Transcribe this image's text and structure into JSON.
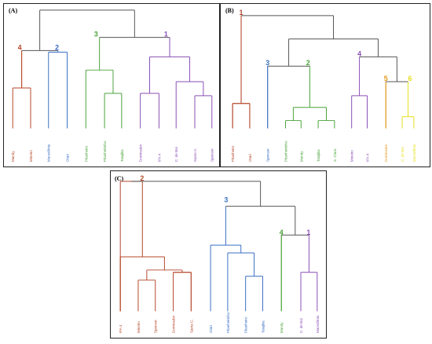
{
  "colors": {
    "link": "#555555",
    "red": "#b5472a",
    "blue": "#3a6fc4",
    "green": "#4aa33a",
    "purple": "#8a4fb5",
    "orange": "#e09a1a",
    "yellow": "#e8e020"
  },
  "panels": [
    {
      "label": "(A)",
      "leaves": [
        {
          "name": "Mundy",
          "color": "red"
        },
        {
          "name": "Mineiro",
          "color": "red"
        },
        {
          "name": "Macedônia",
          "color": "blue"
        },
        {
          "name": "Otari",
          "color": "blue"
        },
        {
          "name": "Pitanheiro",
          "color": "green"
        },
        {
          "name": "Pitanheirinho",
          "color": "green"
        },
        {
          "name": "Tatajiba",
          "color": "green"
        },
        {
          "name": "Dominador",
          "color": "purple"
        },
        {
          "name": "IPA 4",
          "color": "purple"
        },
        {
          "name": "C. de Boi",
          "color": "purple"
        },
        {
          "name": "Santa C.",
          "color": "purple"
        },
        {
          "name": "Spenser",
          "color": "purple"
        }
      ],
      "clusters": [
        {
          "id": "4",
          "color": "red"
        },
        {
          "id": "2",
          "color": "blue"
        },
        {
          "id": "3",
          "color": "green"
        },
        {
          "id": "1",
          "color": "purple"
        }
      ]
    },
    {
      "label": "(B)",
      "leaves": [
        {
          "name": "Pitanheiro",
          "color": "red"
        },
        {
          "name": "Otari",
          "color": "red"
        },
        {
          "name": "Spenser",
          "color": "blue"
        },
        {
          "name": "Pitanheirinho",
          "color": "green"
        },
        {
          "name": "Mundy",
          "color": "green"
        },
        {
          "name": "Tatajiba",
          "color": "green"
        },
        {
          "name": "S. Clara",
          "color": "green"
        },
        {
          "name": "Mineiro",
          "color": "purple"
        },
        {
          "name": "IPA 4",
          "color": "purple"
        },
        {
          "name": "Dominador",
          "color": "orange"
        },
        {
          "name": "C. de Boi",
          "color": "yellow"
        },
        {
          "name": "Macedônia",
          "color": "yellow"
        }
      ],
      "clusters": [
        {
          "id": "1",
          "color": "red"
        },
        {
          "id": "3",
          "color": "blue"
        },
        {
          "id": "2",
          "color": "green"
        },
        {
          "id": "4",
          "color": "purple"
        },
        {
          "id": "5",
          "color": "orange"
        },
        {
          "id": "6",
          "color": "yellow"
        }
      ]
    },
    {
      "label": "(C)",
      "leaves": [
        {
          "name": "IPA 4",
          "color": "red"
        },
        {
          "name": "Mineiro",
          "color": "red"
        },
        {
          "name": "Spenser",
          "color": "red"
        },
        {
          "name": "Dominador",
          "color": "red"
        },
        {
          "name": "Santa C.",
          "color": "red"
        },
        {
          "name": "Otari",
          "color": "blue"
        },
        {
          "name": "Pitanheirinho",
          "color": "blue"
        },
        {
          "name": "Pitanheiro",
          "color": "blue"
        },
        {
          "name": "Tatajiba",
          "color": "blue"
        },
        {
          "name": "Mundy",
          "color": "green"
        },
        {
          "name": "C. de Boi",
          "color": "purple"
        },
        {
          "name": "Macedônia",
          "color": "purple"
        }
      ],
      "clusters": [
        {
          "id": "2",
          "color": "red"
        },
        {
          "id": "3",
          "color": "blue"
        },
        {
          "id": "4",
          "color": "green"
        },
        {
          "id": "1",
          "color": "purple"
        }
      ]
    }
  ]
}
